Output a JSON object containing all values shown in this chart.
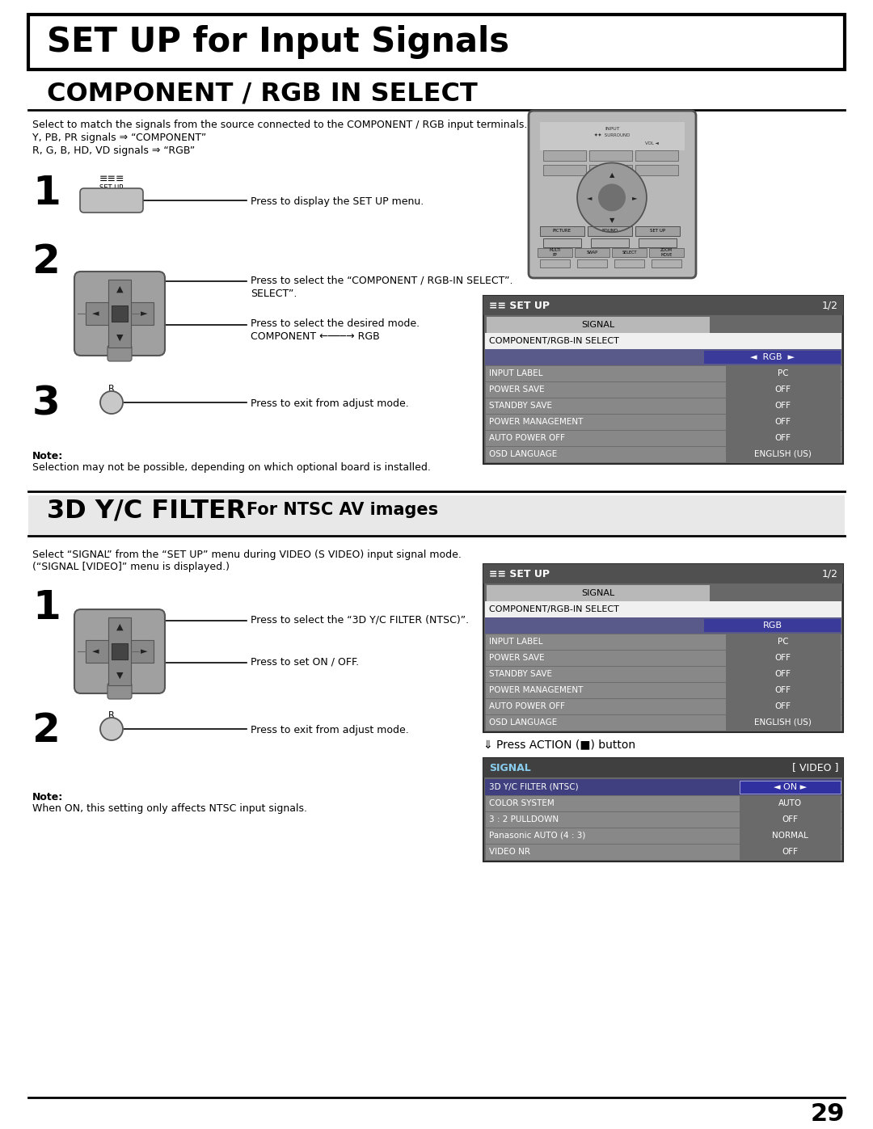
{
  "page_bg": "#ffffff",
  "title_text": "SET UP for Input Signals",
  "s1_title": "COMPONENT / RGB IN SELECT",
  "s2_title": "3D Y/C FILTER",
  "s2_subtitle": " – For NTSC AV images",
  "page_number": "29",
  "s1_desc1": "Select to match the signals from the source connected to the COMPONENT / RGB input terminals.",
  "s1_desc2": "Y, PB, PR signals ⇒ “COMPONENT”",
  "s1_desc3": "R, G, B, HD, VD signals ⇒ “RGB”",
  "s1_step1_label": "1",
  "s1_step1_text": "Press to display the SET UP menu.",
  "s1_step2_label": "2",
  "s1_step2_text1": "Press to select the “COMPONENT / RGB-IN SELECT”.",
  "s1_step2_text2": "Press to select the desired mode.",
  "s1_step2_text3": "COMPONENT ←───→ RGB",
  "s1_step3_label": "3",
  "s1_step3_text": "Press to exit from adjust mode.",
  "s1_note_head": "Note:",
  "s1_note_body": "Selection may not be possible, depending on which optional board is installed.",
  "s2_desc1": "Select “SIGNAL” from the “SET UP” menu during VIDEO (S VIDEO) input signal mode.",
  "s2_desc2": "(“SIGNAL [VIDEO]” menu is displayed.)",
  "s2_step1_label": "1",
  "s2_step1_text1": "Press to select the “3D Y/C FILTER (NTSC)”.",
  "s2_step1_text2": "Press to set ON / OFF.",
  "s2_step2_label": "2",
  "s2_step2_text": "Press to exit from adjust mode.",
  "s2_note_head": "Note:",
  "s2_note_body": "When ON, this setting only affects NTSC input signals.",
  "menu1_title": "SET UP",
  "menu1_page": "1/2",
  "menu1_rows": [
    {
      "left": "SIGNAL",
      "right": "",
      "type": "signal_header"
    },
    {
      "left": "COMPONENT/RGB-IN SELECT",
      "right": "",
      "type": "submenu_label"
    },
    {
      "left": "",
      "right": "RGB",
      "type": "selected_value"
    },
    {
      "left": "INPUT LABEL",
      "right": "PC",
      "type": "normal"
    },
    {
      "left": "POWER SAVE",
      "right": "OFF",
      "type": "normal"
    },
    {
      "left": "STANDBY SAVE",
      "right": "OFF",
      "type": "normal"
    },
    {
      "left": "POWER MANAGEMENT",
      "right": "OFF",
      "type": "normal"
    },
    {
      "left": "AUTO POWER OFF",
      "right": "OFF",
      "type": "normal"
    },
    {
      "left": "OSD LANGUAGE",
      "right": "ENGLISH (US)",
      "type": "normal"
    }
  ],
  "menu2_title": "SET UP",
  "menu2_page": "1/2",
  "menu2_rows": [
    {
      "left": "SIGNAL",
      "right": "",
      "type": "signal_header"
    },
    {
      "left": "COMPONENT/RGB-IN SELECT",
      "right": "",
      "type": "submenu_label"
    },
    {
      "left": "",
      "right": "RGB",
      "type": "value_only"
    },
    {
      "left": "INPUT LABEL",
      "right": "PC",
      "type": "normal"
    },
    {
      "left": "POWER SAVE",
      "right": "OFF",
      "type": "normal"
    },
    {
      "left": "STANDBY SAVE",
      "right": "OFF",
      "type": "normal"
    },
    {
      "left": "POWER MANAGEMENT",
      "right": "OFF",
      "type": "normal"
    },
    {
      "left": "AUTO POWER OFF",
      "right": "OFF",
      "type": "normal"
    },
    {
      "left": "OSD LANGUAGE",
      "right": "ENGLISH (US)",
      "type": "normal"
    }
  ],
  "menu3_title": "SIGNAL",
  "menu3_title_right": "[ VIDEO ]",
  "menu3_rows": [
    {
      "left": "3D Y/C FILTER (NTSC)",
      "right": "ON",
      "type": "highlighted"
    },
    {
      "left": "COLOR SYSTEM",
      "right": "AUTO",
      "type": "normal"
    },
    {
      "left": "3 : 2 PULLDOWN",
      "right": "OFF",
      "type": "normal"
    },
    {
      "left": "Panasonic AUTO (4 : 3)",
      "right": "NORMAL",
      "type": "normal"
    },
    {
      "left": "VIDEO NR",
      "right": "OFF",
      "type": "normal"
    }
  ],
  "action_btn_text": "⇓ Press ACTION (■) button"
}
